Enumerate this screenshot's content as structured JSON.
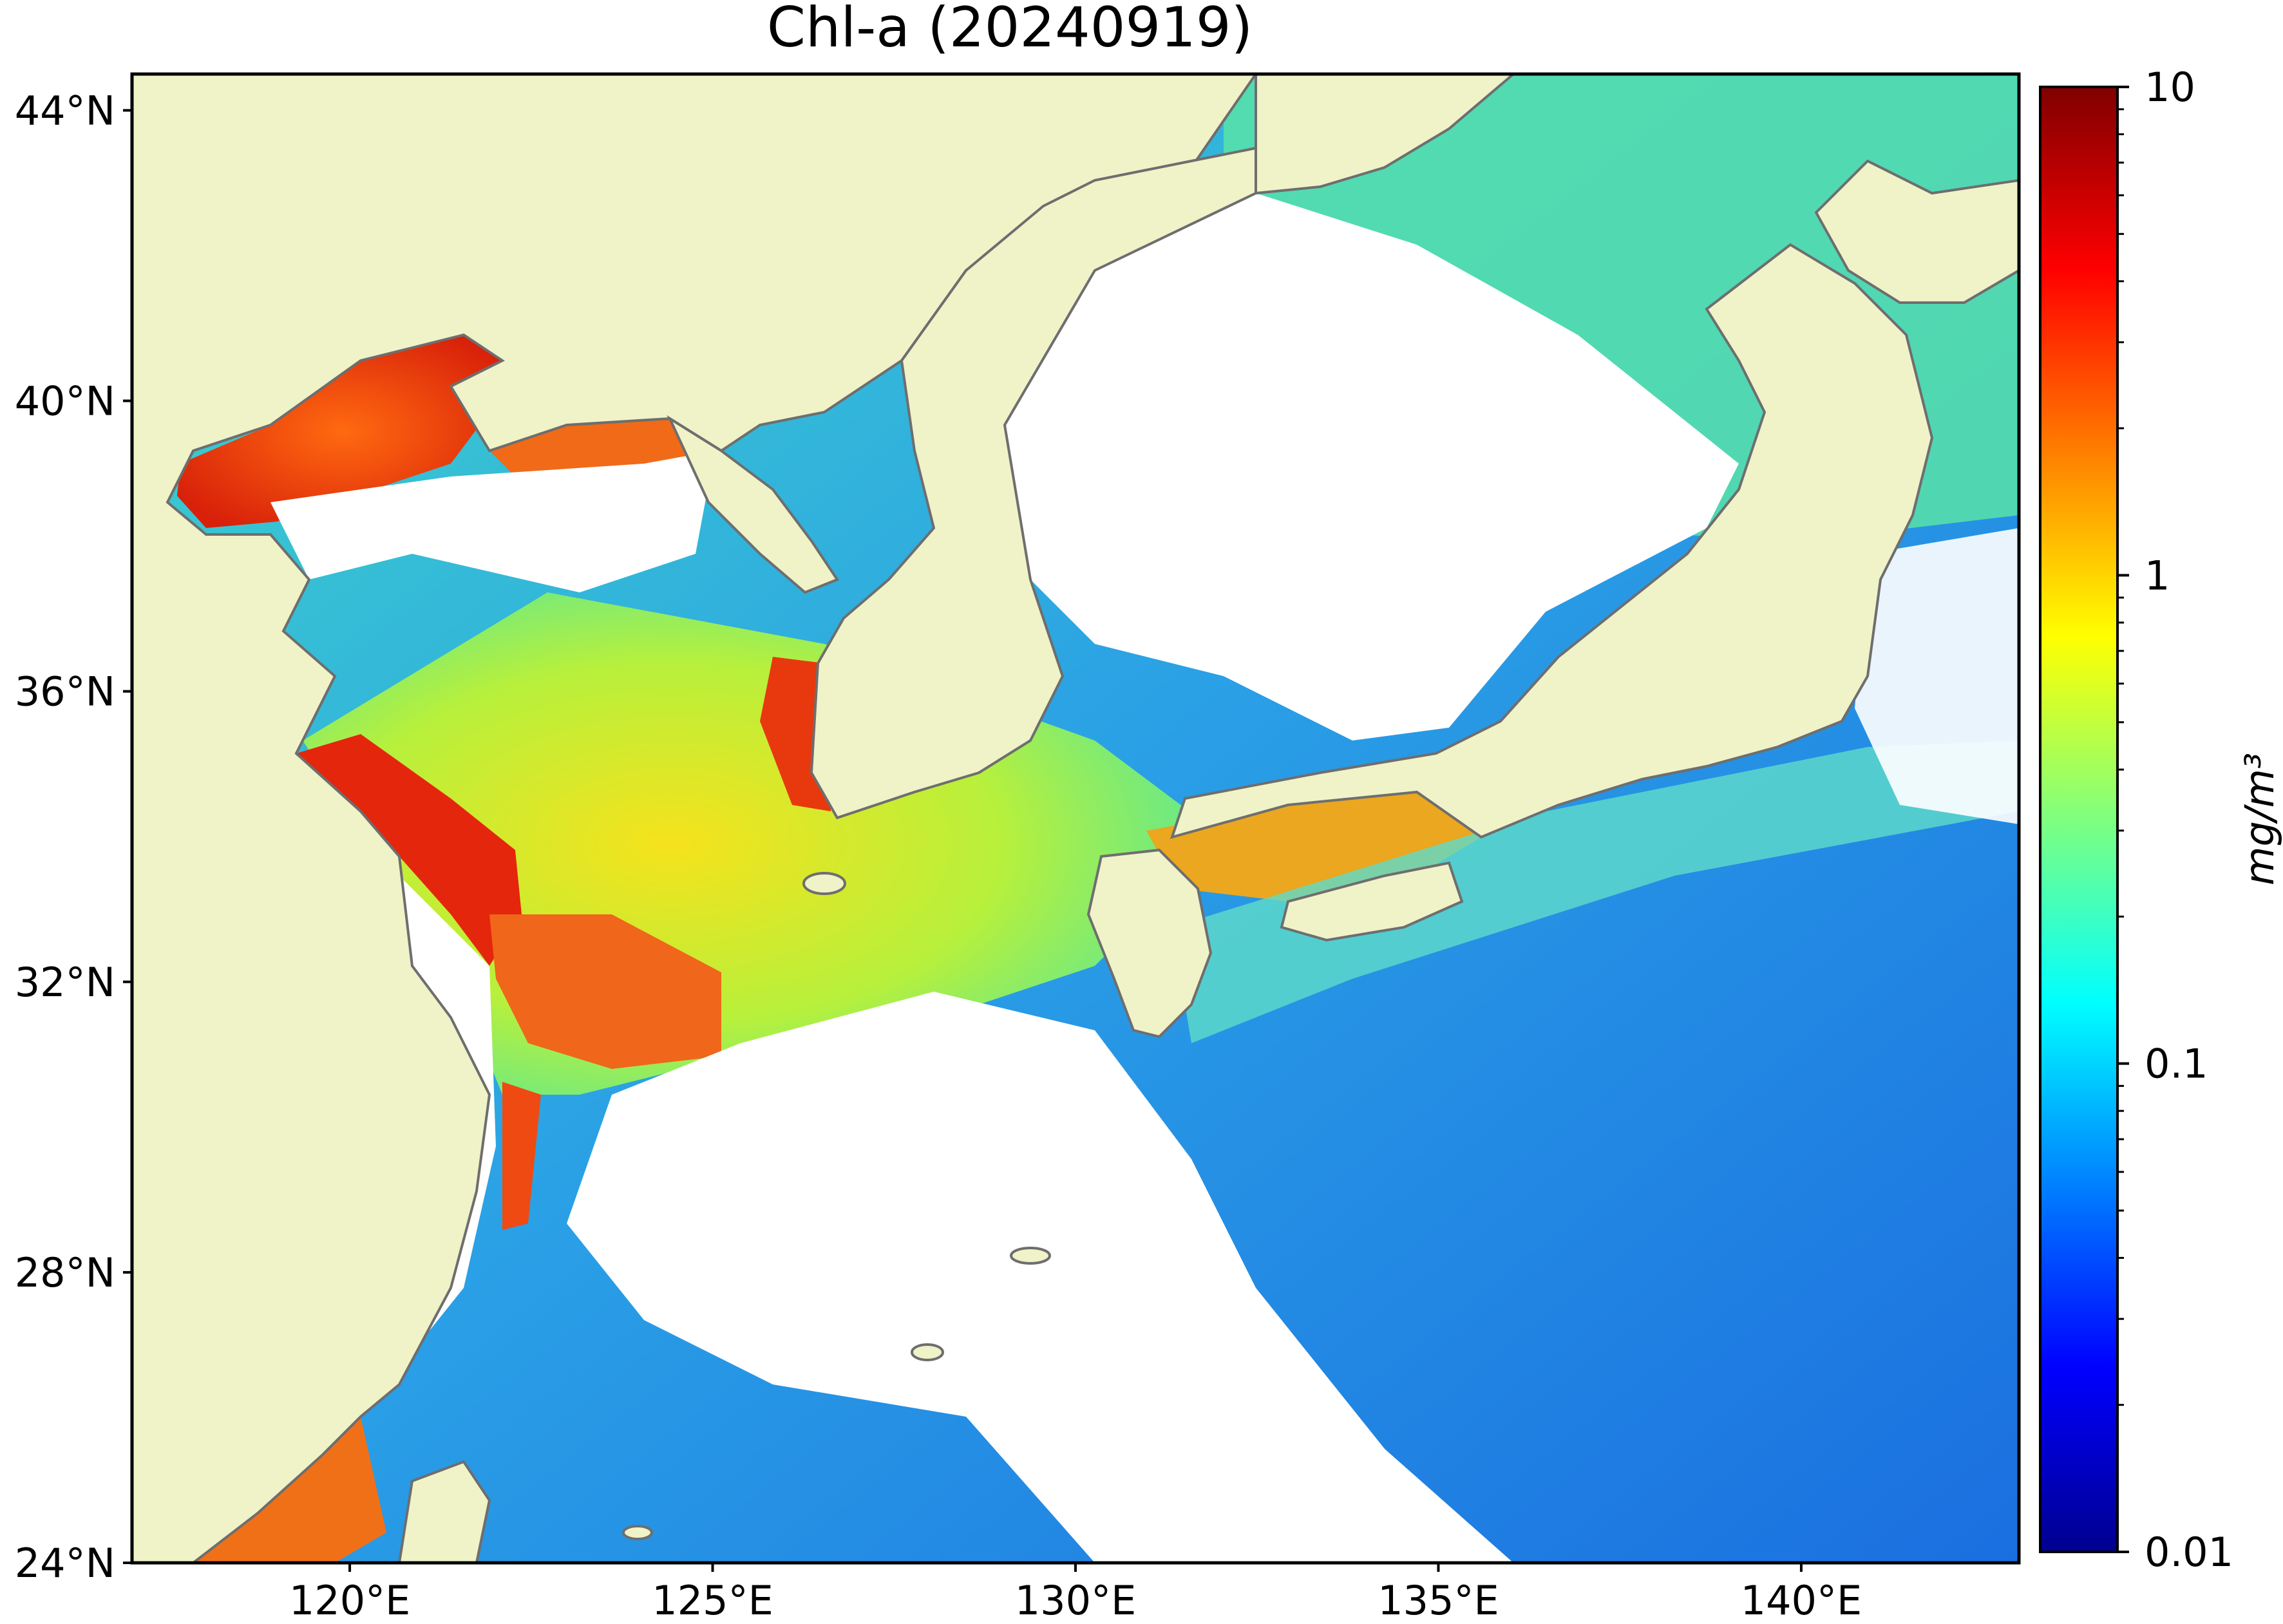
{
  "title": "Chl-a (20240919)",
  "map": {
    "lon_range": [
      117,
      143
    ],
    "lat_range": [
      24,
      44.5
    ],
    "x_ticks": [
      {
        "lon": 120,
        "label": "120°E"
      },
      {
        "lon": 125,
        "label": "125°E"
      },
      {
        "lon": 130,
        "label": "130°E"
      },
      {
        "lon": 135,
        "label": "135°E"
      },
      {
        "lon": 140,
        "label": "140°E"
      }
    ],
    "y_ticks": [
      {
        "lat": 44,
        "label": "44°N"
      },
      {
        "lat": 40,
        "label": "40°N"
      },
      {
        "lat": 36,
        "label": "36°N"
      },
      {
        "lat": 32,
        "label": "32°N"
      },
      {
        "lat": 28,
        "label": "28°N"
      },
      {
        "lat": 24,
        "label": "24°N"
      }
    ],
    "colors": {
      "land": "#f0f2c8",
      "cloud": "#ffffff",
      "coast": "#6e6e6e",
      "open_ocean": "#1e8ee8",
      "shelf": "#ecef2a",
      "coastal_high": "#e8410f"
    }
  },
  "colorbar": {
    "scale": "log",
    "range": [
      0.01,
      10
    ],
    "ticks": [
      {
        "value": 10,
        "label": "10"
      },
      {
        "value": 1,
        "label": "1"
      },
      {
        "value": 0.1,
        "label": "0.1"
      },
      {
        "value": 0.01,
        "label": "0.01"
      }
    ],
    "unit": "mg/m³",
    "colormap": "jet"
  }
}
